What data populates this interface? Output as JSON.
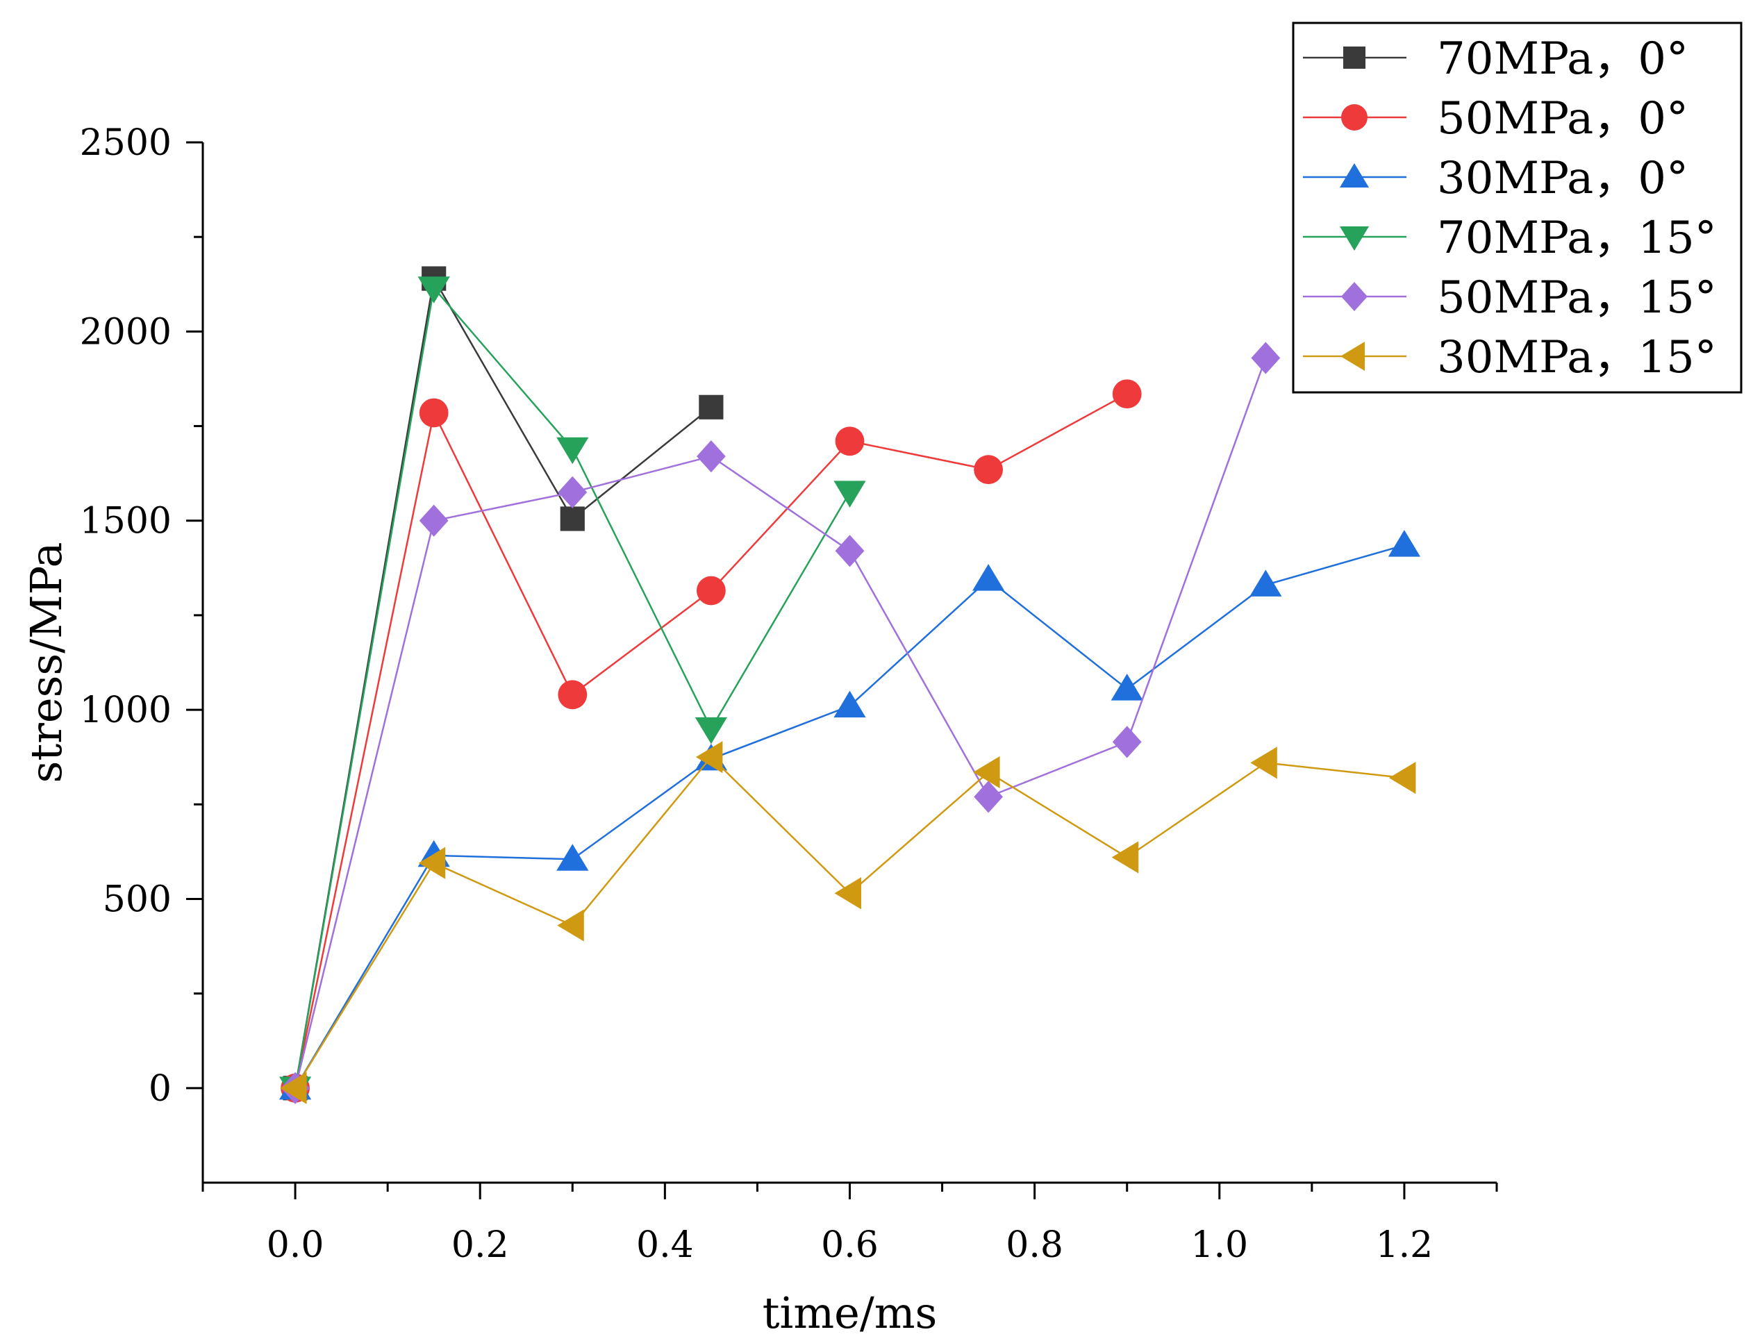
{
  "chart_data": {
    "type": "line",
    "title": "",
    "xlabel": "time/ms",
    "ylabel": "stress/MPa",
    "xlim": [
      -0.1,
      1.3
    ],
    "ylim": [
      -250,
      2500
    ],
    "x_ticks": [
      0.0,
      0.2,
      0.4,
      0.6,
      0.8,
      1.0,
      1.2
    ],
    "x_tick_labels": [
      "0.0",
      "0.2",
      "0.4",
      "0.6",
      "0.8",
      "1.0",
      "1.2"
    ],
    "y_ticks": [
      0,
      500,
      1000,
      1500,
      2000,
      2500
    ],
    "y_tick_labels": [
      "0",
      "500",
      "1000",
      "1500",
      "2000",
      "2500"
    ],
    "grid": false,
    "legend_position": "top-right",
    "series": [
      {
        "name": "70MPa，0°",
        "color": "#3a3a3a",
        "marker": "square",
        "x": [
          0,
          0.15,
          0.3,
          0.45
        ],
        "values": [
          0,
          2140,
          1505,
          1800
        ]
      },
      {
        "name": "50MPa，0°",
        "color": "#ee3a3a",
        "marker": "circle",
        "x": [
          0,
          0.15,
          0.3,
          0.45,
          0.6,
          0.75,
          0.9
        ],
        "values": [
          0,
          1785,
          1040,
          1315,
          1710,
          1635,
          1835
        ]
      },
      {
        "name": "30MPa，0°",
        "color": "#1f6fdc",
        "marker": "triangle-up",
        "x": [
          0,
          0.15,
          0.3,
          0.45,
          0.6,
          0.75,
          0.9,
          1.05,
          1.2
        ],
        "values": [
          0,
          615,
          605,
          870,
          1010,
          1345,
          1055,
          1330,
          1435
        ]
      },
      {
        "name": "70MPa，15°",
        "color": "#27a25a",
        "marker": "triangle-down",
        "x": [
          0,
          0.15,
          0.3,
          0.45,
          0.6
        ],
        "values": [
          0,
          2115,
          1690,
          950,
          1575
        ]
      },
      {
        "name": "50MPa，15°",
        "color": "#a070dc",
        "marker": "diamond",
        "x": [
          0,
          0.15,
          0.3,
          0.45,
          0.6,
          0.75,
          0.9,
          1.05
        ],
        "values": [
          0,
          1500,
          1575,
          1670,
          1420,
          770,
          915,
          1930
        ]
      },
      {
        "name": "30MPa，15°",
        "color": "#cf9a12",
        "marker": "triangle-left",
        "x": [
          0,
          0.15,
          0.3,
          0.45,
          0.6,
          0.75,
          0.9,
          1.05,
          1.2
        ],
        "values": [
          0,
          595,
          430,
          875,
          515,
          835,
          610,
          860,
          820
        ]
      }
    ]
  }
}
